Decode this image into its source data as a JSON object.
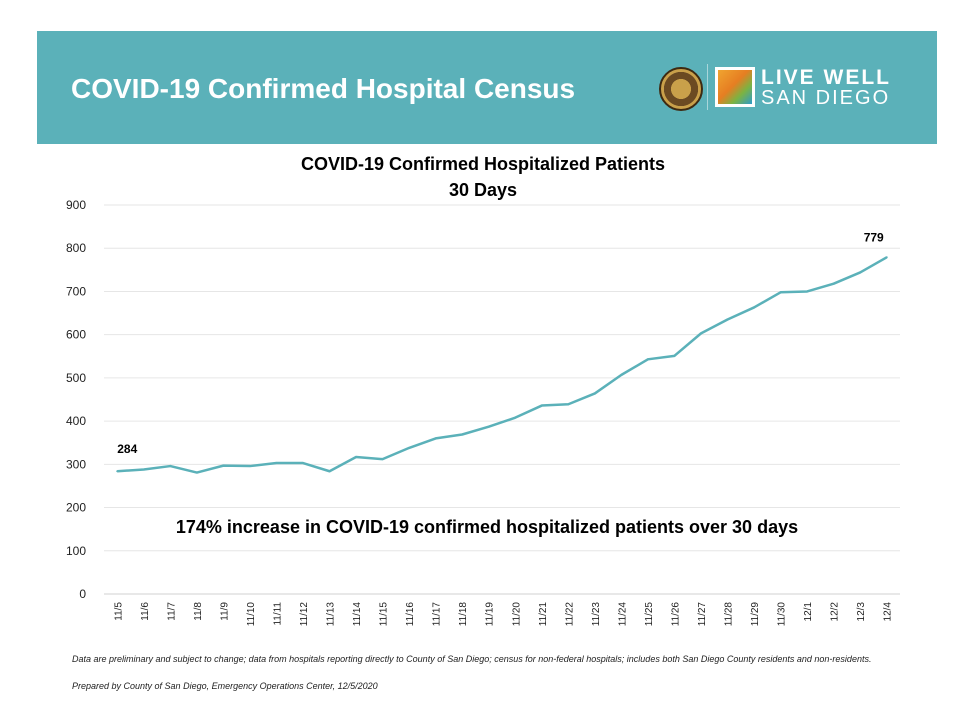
{
  "header": {
    "title": "COVID-19 Confirmed Hospital Census",
    "logo_text_1": "LIVE WELL",
    "logo_text_2": "SAN DIEGO",
    "color": "#5bb1b9"
  },
  "chart_data": {
    "type": "line",
    "title": "COVID-19 Confirmed Hospitalized Patients",
    "subtitle": "30 Days",
    "categories": [
      "11/5",
      "11/6",
      "11/7",
      "11/8",
      "11/9",
      "11/10",
      "11/11",
      "11/12",
      "11/13",
      "11/14",
      "11/15",
      "11/16",
      "11/17",
      "11/18",
      "11/19",
      "11/20",
      "11/21",
      "11/22",
      "11/23",
      "11/24",
      "11/25",
      "11/26",
      "11/27",
      "11/28",
      "11/29",
      "11/30",
      "12/1",
      "12/2",
      "12/3",
      "12/4"
    ],
    "values": [
      284,
      288,
      296,
      281,
      297,
      296,
      303,
      303,
      284,
      317,
      312,
      338,
      360,
      369,
      387,
      408,
      436,
      439,
      464,
      507,
      543,
      551,
      603,
      635,
      663,
      698,
      700,
      718,
      744,
      779
    ],
    "data_labels": {
      "first": "284",
      "last": "779"
    },
    "ylim": [
      0,
      900
    ],
    "yticks": [
      0,
      100,
      200,
      300,
      400,
      500,
      600,
      700,
      800,
      900
    ],
    "grid": true,
    "line_color": "#5bb1b9",
    "annotation": "174% increase in COVID-19 confirmed hospitalized patients over 30 days"
  },
  "footer": {
    "note": "Data are preliminary and subject to change; data from hospitals reporting directly to County of San Diego; census for non-federal hospitals; includes both San Diego County residents and non-residents.",
    "prepared": "Prepared by County of San Diego, Emergency Operations Center, 12/5/2020"
  }
}
